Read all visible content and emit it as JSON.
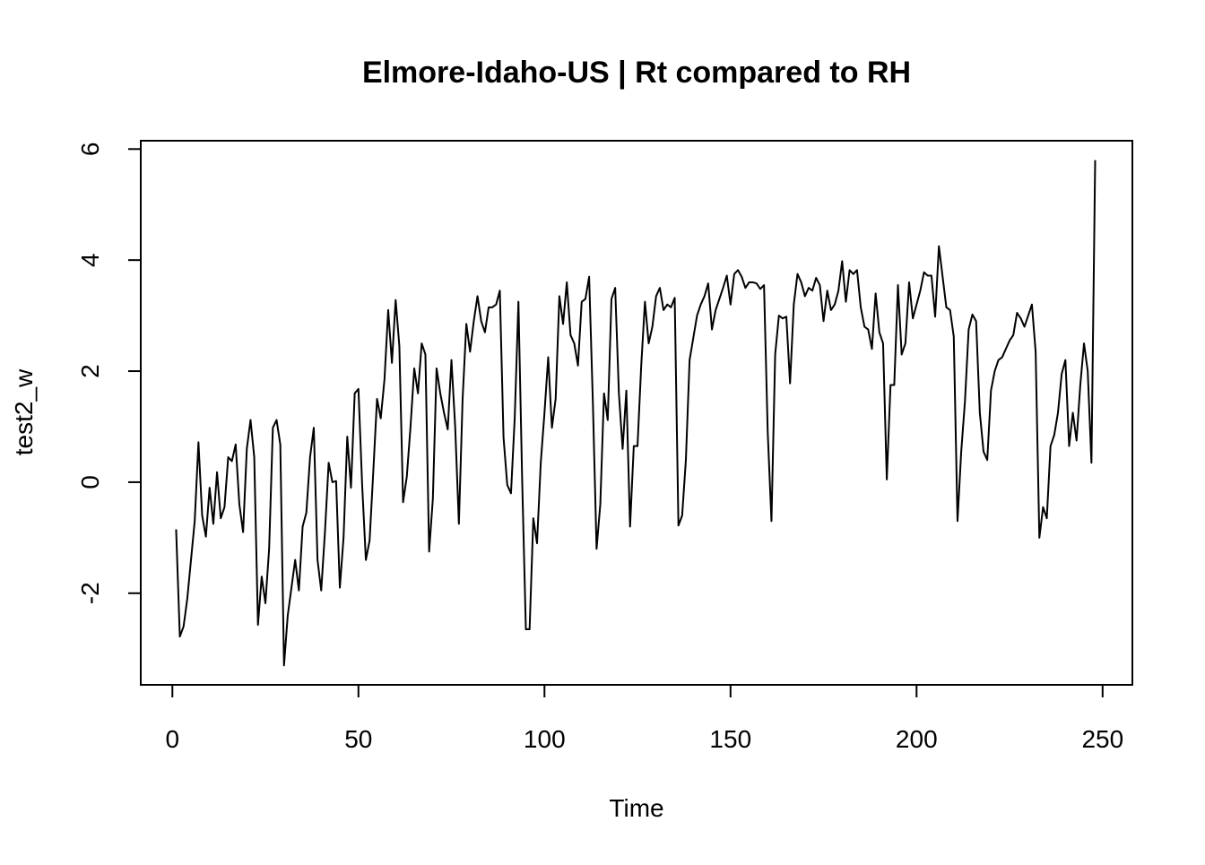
{
  "chart_data": {
    "type": "line",
    "title": "Elmore-Idaho-US | Rt compared to RH",
    "xlabel": "Time",
    "ylabel": "test2_w",
    "xlim": [
      -8.5,
      258
    ],
    "ylim": [
      -3.65,
      6.15
    ],
    "x_ticks": [
      0,
      50,
      100,
      150,
      200,
      250
    ],
    "y_ticks": [
      -2,
      0,
      2,
      4,
      6
    ],
    "x_tick_labels": [
      "0",
      "50",
      "100",
      "150",
      "200",
      "250"
    ],
    "y_tick_labels": [
      "-2",
      "0",
      "2",
      "4",
      "6"
    ],
    "grid": false,
    "line_color": "#000000",
    "series": [
      {
        "x_start": 1,
        "values": [
          -0.85,
          -2.78,
          -2.6,
          -2.1,
          -1.4,
          -0.7,
          0.72,
          -0.6,
          -0.98,
          -0.1,
          -0.75,
          0.18,
          -0.65,
          -0.45,
          0.45,
          0.38,
          0.68,
          -0.4,
          -0.9,
          0.6,
          1.12,
          0.45,
          -2.57,
          -1.7,
          -2.18,
          -1.2,
          0.98,
          1.12,
          0.68,
          -3.3,
          -2.4,
          -1.9,
          -1.4,
          -1.95,
          -0.8,
          -0.55,
          0.45,
          0.98,
          -1.4,
          -1.95,
          -0.9,
          0.35,
          0.0,
          0.02,
          -1.9,
          -1.0,
          0.82,
          -0.1,
          1.6,
          1.68,
          -0.05,
          -1.4,
          -1.05,
          0.2,
          1.5,
          1.15,
          1.85,
          3.1,
          2.15,
          3.28,
          2.45,
          -0.36,
          0.1,
          1.0,
          2.05,
          1.6,
          2.5,
          2.3,
          -1.25,
          -0.3,
          2.05,
          1.6,
          1.25,
          0.95,
          2.2,
          1.0,
          -0.75,
          1.5,
          2.85,
          2.35,
          2.9,
          3.35,
          2.9,
          2.7,
          3.15,
          3.15,
          3.2,
          3.45,
          0.8,
          -0.05,
          -0.2,
          1.15,
          3.25,
          0.05,
          -2.65,
          -2.65,
          -0.65,
          -1.1,
          0.35,
          1.25,
          2.25,
          0.98,
          1.5,
          3.35,
          2.85,
          3.6,
          2.65,
          2.5,
          2.1,
          3.25,
          3.3,
          3.7,
          1.45,
          -1.2,
          -0.4,
          1.6,
          1.12,
          3.3,
          3.5,
          1.6,
          0.6,
          1.65,
          -0.8,
          0.65,
          0.65,
          2.1,
          3.25,
          2.5,
          2.8,
          3.35,
          3.5,
          3.1,
          3.2,
          3.15,
          3.32,
          -0.78,
          -0.6,
          0.4,
          2.2,
          2.6,
          3.0,
          3.2,
          3.35,
          3.58,
          2.75,
          3.1,
          3.3,
          3.5,
          3.72,
          3.2,
          3.75,
          3.82,
          3.7,
          3.5,
          3.6,
          3.6,
          3.58,
          3.48,
          3.55,
          0.9,
          -0.7,
          2.3,
          3.0,
          2.95,
          2.98,
          1.78,
          3.2,
          3.75,
          3.6,
          3.35,
          3.5,
          3.45,
          3.68,
          3.55,
          2.9,
          3.45,
          3.1,
          3.2,
          3.45,
          3.98,
          3.25,
          3.82,
          3.75,
          3.82,
          3.15,
          2.8,
          2.75,
          2.4,
          3.4,
          2.7,
          2.5,
          0.05,
          1.75,
          1.75,
          3.55,
          2.3,
          2.5,
          3.6,
          2.95,
          3.2,
          3.45,
          3.78,
          3.72,
          3.72,
          2.98,
          4.25,
          3.7,
          3.15,
          3.1,
          2.62,
          -0.7,
          0.55,
          1.45,
          2.75,
          3.02,
          2.9,
          1.25,
          0.55,
          0.4,
          1.65,
          2.0,
          2.2,
          2.25,
          2.4,
          2.55,
          2.65,
          3.05,
          2.95,
          2.8,
          3.0,
          3.2,
          2.35,
          -1.0,
          -0.45,
          -0.65,
          0.65,
          0.85,
          1.25,
          1.95,
          2.2,
          0.65,
          1.25,
          0.75,
          1.75,
          2.5,
          2.0,
          0.35,
          5.8
        ]
      }
    ]
  }
}
